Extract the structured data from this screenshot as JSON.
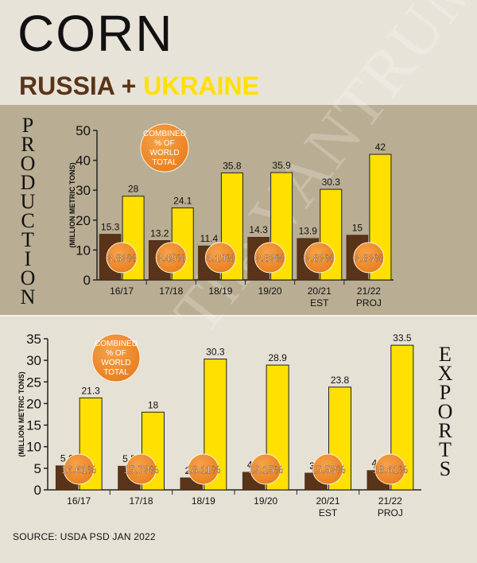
{
  "header": {
    "title": "CORN",
    "subtitle_country1": "RUSSIA",
    "subtitle_plus": "+",
    "subtitle_country2": "UKRAINE"
  },
  "colors": {
    "russia": "#5a3418",
    "ukraine": "#ffe000",
    "badge": "#e87e1e",
    "production_panel": "#b9ad93",
    "exports_panel": "#e6e1d5"
  },
  "watermark": "The VANTRUMP Report",
  "source": "SOURCE: USDA PSD JAN 2022",
  "chart_data": [
    {
      "type": "bar",
      "side_label": "PRODUCTION",
      "ylabel": "(MILLION METRIC TONS)",
      "ylim": [
        0,
        50
      ],
      "yticks": [
        0,
        10,
        20,
        30,
        40,
        50
      ],
      "categories": [
        [
          "16/17"
        ],
        [
          "17/18"
        ],
        [
          "18/19"
        ],
        [
          "19/20"
        ],
        [
          "20/21",
          "EST"
        ],
        [
          "21/22",
          "PROJ"
        ]
      ],
      "series": [
        {
          "values": [
            15.3,
            13.2,
            11.4,
            14.3,
            13.9,
            15
          ],
          "labels": [
            "15.3",
            "13.2",
            "11.4",
            "14.3",
            "13.9",
            "15"
          ]
        },
        {
          "values": [
            28,
            24.1,
            35.8,
            35.9,
            30.3,
            42
          ],
          "labels": [
            "28",
            "24.1",
            "35.8",
            "35.9",
            "30.3",
            "42"
          ]
        }
      ],
      "combined_share": [
        "3.83%",
        "3.45%",
        "4.19%",
        "3.83%",
        "3.83%",
        "3.83%"
      ],
      "annotation": "COMBINED % OF WORLD TOTAL"
    },
    {
      "type": "bar",
      "side_label": "EXPORTS",
      "ylabel": "(MILLION METRIC TONS)",
      "ylim": [
        0,
        35
      ],
      "yticks": [
        0,
        5,
        10,
        15,
        20,
        25,
        30,
        35
      ],
      "categories": [
        [
          "16/17"
        ],
        [
          "17/18"
        ],
        [
          "18/19"
        ],
        [
          "19/20"
        ],
        [
          "20/21",
          "EST"
        ],
        [
          "21/22",
          "PROJ"
        ]
      ],
      "series": [
        {
          "values": [
            5.6,
            5.5,
            2.8,
            4.1,
            3.9,
            4.5
          ],
          "labels": [
            "5.6",
            "5.5",
            "2.8",
            "4.1",
            "3.9",
            "4.5"
          ]
        },
        {
          "values": [
            21.3,
            18,
            30.3,
            28.9,
            23.8,
            33.5
          ],
          "labels": [
            "21.3",
            "18",
            "30.3",
            "28.9",
            "23.8",
            "33.5"
          ]
        }
      ],
      "combined_share": [
        "16.61%",
        "15.73%",
        "18.11%",
        "19.15%",
        "15.53%",
        "18.61%"
      ],
      "annotation": "COMBINED % OF WORLD TOTAL"
    }
  ]
}
